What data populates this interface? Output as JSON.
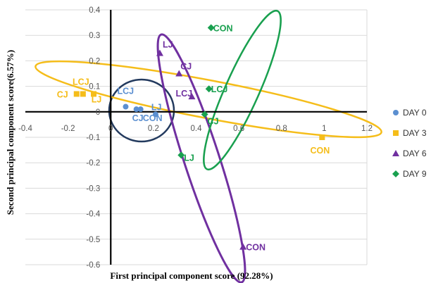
{
  "chart_data": {
    "type": "scatter",
    "xlabel": "First principal component score (92.28%)",
    "ylabel": "Second principal component score(6.57%)",
    "xlim": [
      -0.4,
      1.2
    ],
    "ylim": [
      -0.6,
      0.4
    ],
    "x_ticks": [
      -0.4,
      -0.2,
      0,
      0.2,
      0.4,
      0.6,
      0.8,
      1,
      1.2
    ],
    "y_ticks": [
      0.4,
      0.3,
      0.2,
      0.1,
      0,
      -0.1,
      -0.2,
      -0.3,
      -0.4,
      -0.5,
      -0.6
    ],
    "x_tick_labels": [
      "-0.4",
      "-0.2",
      "0",
      "0.2",
      "0.4",
      "0.6",
      "0.8",
      "1",
      "1.2"
    ],
    "y_tick_labels": [
      "0.4",
      "0.3",
      "0.2",
      "0.1",
      "0",
      "-0.1",
      "-0.2",
      "-0.3",
      "-0.4",
      "-0.5",
      "-0.6"
    ],
    "grid": "horizontal",
    "legend_position": "right",
    "series": [
      {
        "name": "DAY 0",
        "color": "#5b8fd0",
        "marker": "circle",
        "points": [
          {
            "label": "LCJ",
            "x": 0.07,
            "y": 0.02
          },
          {
            "label": "CJ",
            "x": 0.12,
            "y": 0.01
          },
          {
            "label": "CON",
            "x": 0.14,
            "y": 0.01
          },
          {
            "label": "LJ",
            "x": 0.21,
            "y": -0.01
          }
        ]
      },
      {
        "name": "DAY 3",
        "color": "#f5bd1a",
        "marker": "square",
        "points": [
          {
            "label": "LCJ",
            "x": -0.13,
            "y": 0.07
          },
          {
            "label": "CJ",
            "x": -0.16,
            "y": 0.07
          },
          {
            "label": "LJ",
            "x": -0.08,
            "y": 0.07
          },
          {
            "label": "CON",
            "x": 0.99,
            "y": -0.1
          }
        ]
      },
      {
        "name": "DAY 6",
        "color": "#7030a0",
        "marker": "triangle",
        "points": [
          {
            "label": "LJ",
            "x": 0.23,
            "y": 0.23
          },
          {
            "label": "CJ",
            "x": 0.32,
            "y": 0.15
          },
          {
            "label": "LCJ",
            "x": 0.38,
            "y": 0.06
          },
          {
            "label": "CON",
            "x": 0.62,
            "y": -0.53
          }
        ]
      },
      {
        "name": "DAY 9",
        "color": "#19a04f",
        "marker": "diamond",
        "points": [
          {
            "label": "CON",
            "x": 0.47,
            "y": 0.33
          },
          {
            "label": "LCJ",
            "x": 0.46,
            "y": 0.09
          },
          {
            "label": "CJ",
            "x": 0.44,
            "y": -0.01
          },
          {
            "label": "LJ",
            "x": 0.33,
            "y": -0.17
          }
        ]
      }
    ],
    "groupings": [
      {
        "name": "DAY 0",
        "color": "#233a5e"
      },
      {
        "name": "DAY 3",
        "color": "#f5bd1a"
      },
      {
        "name": "DAY 6",
        "color": "#7030a0"
      },
      {
        "name": "DAY 9",
        "color": "#19a04f"
      }
    ]
  }
}
